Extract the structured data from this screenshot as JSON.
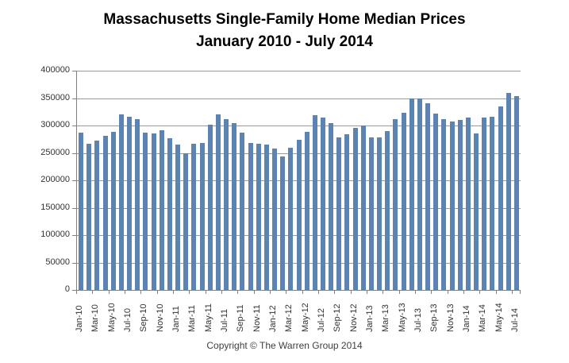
{
  "title": {
    "line1": "Massachusetts Single-Family Home Median Prices",
    "line2": "January 2010 - July 2014"
  },
  "footer": {
    "copyright": "Copyright © The Warren Group 2014"
  },
  "chart_data": {
    "type": "bar",
    "title": "Massachusetts Single-Family Home Median Prices",
    "subtitle": "January 2010 - July 2014",
    "xlabel": "",
    "ylabel": "",
    "ylim": [
      0,
      400000
    ],
    "ytick_step": 50000,
    "xtick_every": 2,
    "grid": "horizontal",
    "legend": "none",
    "bar_color": "#5b84b2",
    "gridline_color": "#9a9a9a",
    "axis_color": "#808080",
    "x": [
      "Jan-10",
      "Feb-10",
      "Mar-10",
      "Apr-10",
      "May-10",
      "Jun-10",
      "Jul-10",
      "Aug-10",
      "Sep-10",
      "Oct-10",
      "Nov-10",
      "Dec-10",
      "Jan-11",
      "Feb-11",
      "Mar-11",
      "Apr-11",
      "May-11",
      "Jun-11",
      "Jul-11",
      "Aug-11",
      "Sep-11",
      "Oct-11",
      "Nov-11",
      "Dec-11",
      "Jan-12",
      "Feb-12",
      "Mar-12",
      "Apr-12",
      "May-12",
      "Jun-12",
      "Jul-12",
      "Aug-12",
      "Sep-12",
      "Oct-12",
      "Nov-12",
      "Dec-12",
      "Jan-13",
      "Feb-13",
      "Mar-13",
      "Apr-13",
      "May-13",
      "Jun-13",
      "Jul-13",
      "Aug-13",
      "Sep-13",
      "Oct-13",
      "Nov-13",
      "Dec-13",
      "Jan-14",
      "Feb-14",
      "Mar-14",
      "Apr-14",
      "May-14",
      "Jun-14",
      "Jul-14"
    ],
    "values": [
      287000,
      266000,
      273000,
      281000,
      288000,
      321000,
      316000,
      311000,
      287000,
      285000,
      291000,
      277000,
      265000,
      250000,
      267000,
      268000,
      302000,
      320000,
      311000,
      304000,
      287000,
      268000,
      266000,
      265000,
      258000,
      244000,
      260000,
      274000,
      288000,
      319000,
      315000,
      304000,
      278000,
      284000,
      295000,
      300000,
      278000,
      279000,
      290000,
      312000,
      323000,
      349000,
      349000,
      340000,
      322000,
      311000,
      307000,
      310000,
      315000,
      285000,
      315000,
      316000,
      335000,
      360000,
      353000
    ]
  }
}
